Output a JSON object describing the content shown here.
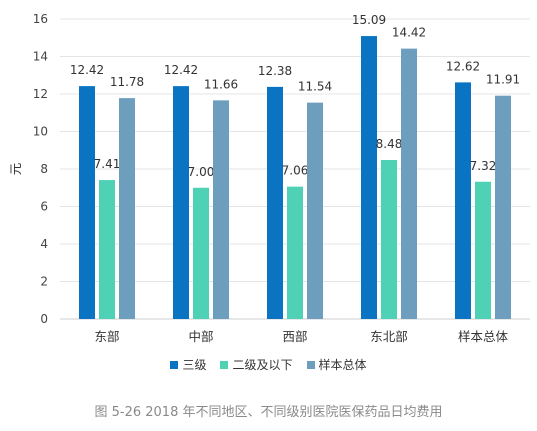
{
  "chart_data": {
    "type": "bar",
    "categories": [
      "东部",
      "中部",
      "西部",
      "东北部",
      "样本总体"
    ],
    "series": [
      {
        "name": "三级",
        "color": "#0a73c2",
        "values": [
          12.42,
          12.42,
          12.38,
          15.09,
          12.62
        ]
      },
      {
        "name": "二级及以下",
        "color": "#4ed1b5",
        "values": [
          7.41,
          7.0,
          7.06,
          8.48,
          7.32
        ]
      },
      {
        "name": "样本总体",
        "color": "#6d9ebd",
        "values": [
          11.78,
          11.66,
          11.54,
          14.42,
          11.91
        ]
      }
    ],
    "value_labels": [
      [
        "12.42",
        "12.42",
        "12.38",
        "15.09",
        "12.62"
      ],
      [
        "7.41",
        "7.00",
        "7.06",
        "8.48",
        "7.32"
      ],
      [
        "11.78",
        "11.66",
        "11.54",
        "14.42",
        "11.91"
      ]
    ],
    "ylabel": "元",
    "ylim": [
      0,
      16
    ],
    "yticks": [
      0,
      2,
      4,
      6,
      8,
      10,
      12,
      14,
      16
    ],
    "grid": true,
    "legend_position": "bottom"
  },
  "caption": "图 5-26 2018 年不同地区、不同级别医院医保药品日均费用"
}
